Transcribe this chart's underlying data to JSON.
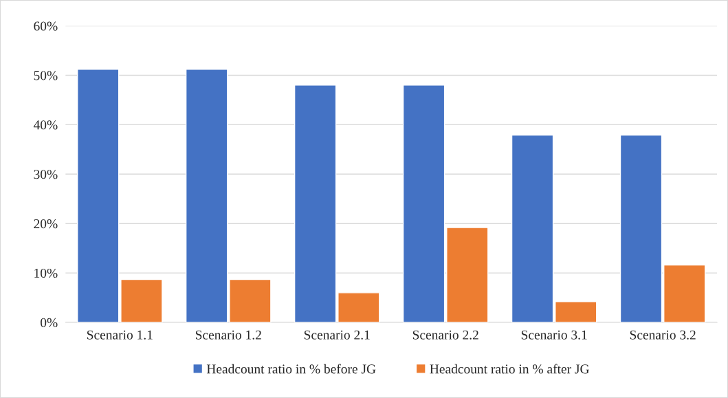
{
  "chart_data": {
    "type": "bar",
    "categories": [
      "Scenario 1.1",
      "Scenario 1.2",
      "Scenario 2.1",
      "Scenario 2.2",
      "Scenario 3.1",
      "Scenario 3.2"
    ],
    "series": [
      {
        "name": "Headcount ratio in % before JG",
        "color": "#4472c4",
        "values": [
          51.2,
          51.2,
          48.0,
          48.0,
          37.9,
          37.9
        ]
      },
      {
        "name": "Headcount ratio in % after JG",
        "color": "#ed7d31",
        "values": [
          8.7,
          8.7,
          6.0,
          19.2,
          4.2,
          11.6
        ]
      }
    ],
    "ylim": [
      0,
      60
    ],
    "yticks": [
      {
        "value": 0,
        "label": "0%"
      },
      {
        "value": 10,
        "label": "10%"
      },
      {
        "value": 20,
        "label": "20%"
      },
      {
        "value": 30,
        "label": "30%"
      },
      {
        "value": 40,
        "label": "40%"
      },
      {
        "value": 50,
        "label": "50%"
      },
      {
        "value": 60,
        "label": "60%"
      }
    ],
    "grid": "y",
    "legend": "bottom"
  }
}
